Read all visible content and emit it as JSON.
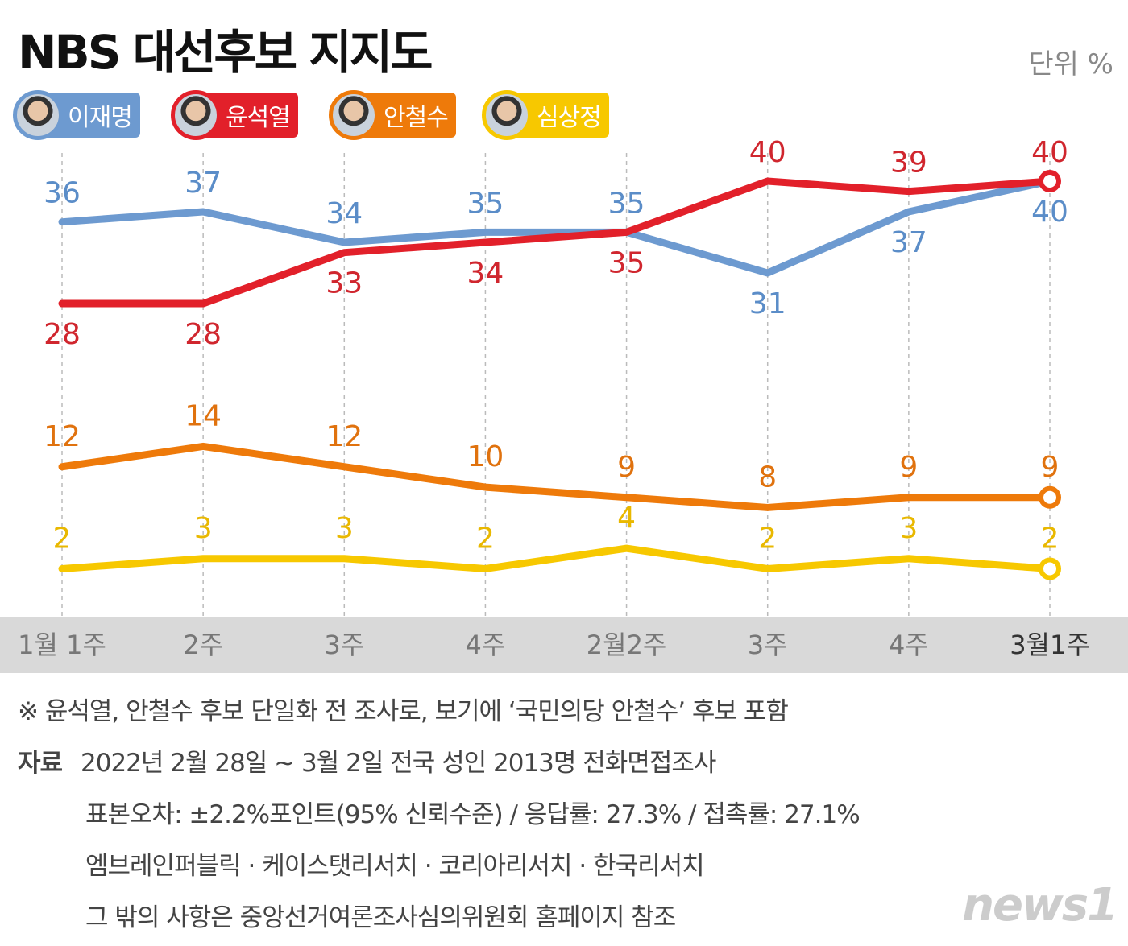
{
  "title": "NBS 대선후보 지지도",
  "unit": "단위 %",
  "chart_data": {
    "type": "line",
    "title": "NBS 대선후보 지지도",
    "categories": [
      "1월 1주",
      "2주",
      "3주",
      "4주",
      "2월2주",
      "3주",
      "4주",
      "3월1주"
    ],
    "ylim": [
      0,
      42
    ],
    "grid": "vertical dashed",
    "legend": "top-left",
    "series": [
      {
        "name": "이재명",
        "color": "#6d9ad0",
        "label_color": "#5b8dc8",
        "values": [
          36,
          37,
          34,
          35,
          35,
          31,
          37,
          40
        ]
      },
      {
        "name": "윤석열",
        "color": "#e2202a",
        "label_color": "#d0262e",
        "values": [
          28,
          28,
          33,
          34,
          35,
          40,
          39,
          40
        ]
      },
      {
        "name": "안철수",
        "color": "#ee7a0a",
        "label_color": "#e0720e",
        "values": [
          12,
          14,
          12,
          10,
          9,
          8,
          9,
          9
        ]
      },
      {
        "name": "심상정",
        "color": "#f7c800",
        "label_color": "#e9b800",
        "values": [
          2,
          3,
          3,
          2,
          4,
          2,
          3,
          2
        ]
      }
    ]
  },
  "notes": {
    "note": "※ 윤석열, 안철수 후보 단일화 전 조사로, 보기에 ‘국민의당 안철수’ 후보 포함",
    "source_label": "자료",
    "source_line1": "2022년 2월 28일 ~ 3월 2일 전국 성인 2013명 전화면접조사",
    "source_line2": "표본오차: ±2.2%포인트(95% 신뢰수준) / 응답률: 27.3% / 접촉률: 27.1%",
    "source_line3": "엠브레인퍼블릭 · 케이스탯리서치 · 코리아리서치 · 한국리서치",
    "source_line4": "그 밖의 사항은 중앙선거여론조사심의위원회 홈페이지 참조"
  },
  "logo": "news1"
}
